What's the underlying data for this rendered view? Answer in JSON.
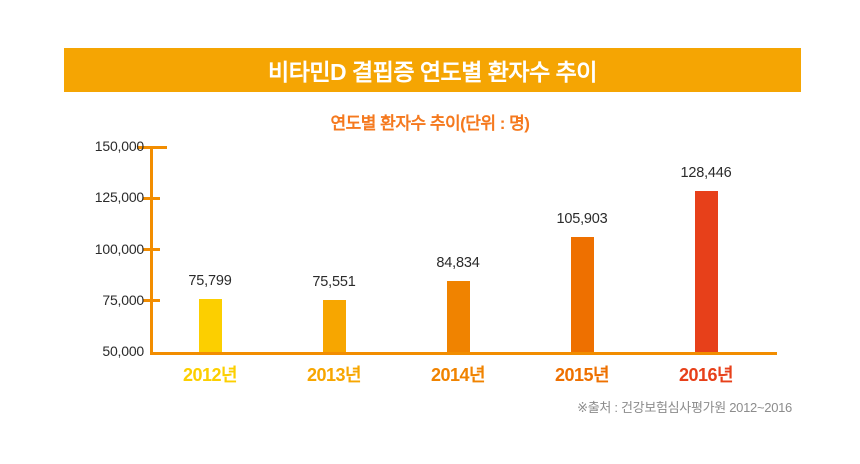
{
  "banner": {
    "title": "비타민D 결핍증 연도별 환자수 추이",
    "bg_color": "#F5A503",
    "text_color": "#FFFFFF"
  },
  "subtitle": {
    "text": "연도별 환자수 추이(단위 : 명)",
    "color": "#F5791E"
  },
  "source": {
    "text": "※출처 : 건강보험심사평가원 2012~2016",
    "color": "#8C8C8C"
  },
  "chart_data": {
    "type": "bar",
    "title": "연도별 환자수 추이(단위 : 명)",
    "categories": [
      "2012년",
      "2013년",
      "2014년",
      "2015년",
      "2016년"
    ],
    "values": [
      75799,
      75551,
      84834,
      105903,
      128446
    ],
    "value_labels": [
      "75,799",
      "75,551",
      "84,834",
      "105,903",
      "128,446"
    ],
    "bar_colors": [
      "#FCCF00",
      "#F7A600",
      "#F08300",
      "#EE7000",
      "#E7401A"
    ],
    "xlabel": "",
    "ylabel": "",
    "ylim": [
      50000,
      150000
    ],
    "yticks": [
      50000,
      75000,
      100000,
      125000,
      150000
    ],
    "ytick_labels": [
      "50,000",
      "75,000",
      "100,000",
      "125,000",
      "150,000"
    ],
    "axis_color": "#F28D00",
    "grid": false,
    "legend": null
  }
}
